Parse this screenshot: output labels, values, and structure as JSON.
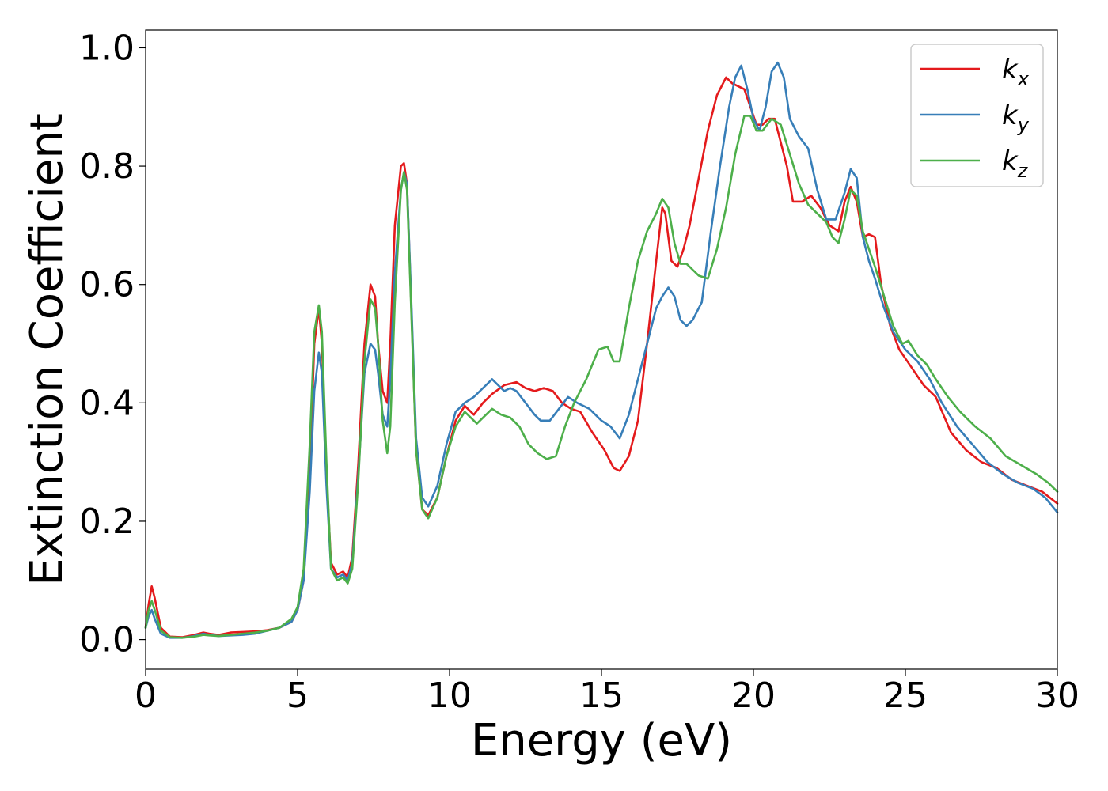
{
  "chart_data": {
    "type": "line",
    "xlabel": "Energy (eV)",
    "ylabel": "Extinction Coefficient",
    "xlim": [
      0,
      30
    ],
    "ylim": [
      -0.05,
      1.03
    ],
    "xticks": [
      0,
      5,
      10,
      15,
      20,
      25,
      30
    ],
    "yticks": [
      0.0,
      0.2,
      0.4,
      0.6,
      0.8,
      1.0
    ],
    "xtick_labels": [
      "0",
      "5",
      "10",
      "15",
      "20",
      "25",
      "30"
    ],
    "ytick_labels": [
      "0.0",
      "0.2",
      "0.4",
      "0.6",
      "0.8",
      "1.0"
    ],
    "grid": false,
    "legend_position": "top-right",
    "series": [
      {
        "name": "k",
        "subscript": "x",
        "color": "#e41a1c",
        "x": [
          0,
          0.1,
          0.2,
          0.3,
          0.5,
          0.8,
          1.2,
          1.6,
          1.9,
          2.1,
          2.4,
          2.8,
          3.2,
          3.6,
          4.0,
          4.4,
          4.8,
          5.0,
          5.2,
          5.4,
          5.55,
          5.7,
          5.8,
          5.95,
          6.1,
          6.3,
          6.5,
          6.65,
          6.8,
          7.0,
          7.2,
          7.4,
          7.55,
          7.65,
          7.8,
          7.95,
          8.05,
          8.2,
          8.4,
          8.5,
          8.6,
          8.75,
          8.9,
          9.1,
          9.3,
          9.6,
          9.9,
          10.2,
          10.5,
          10.8,
          11.1,
          11.4,
          11.8,
          12.2,
          12.5,
          12.8,
          13.1,
          13.4,
          13.7,
          14.0,
          14.3,
          14.7,
          15.1,
          15.4,
          15.6,
          15.9,
          16.2,
          16.5,
          16.8,
          17.0,
          17.1,
          17.3,
          17.5,
          17.7,
          17.9,
          18.2,
          18.5,
          18.8,
          19.1,
          19.3,
          19.5,
          19.7,
          19.9,
          20.1,
          20.3,
          20.5,
          20.7,
          20.9,
          21.1,
          21.3,
          21.6,
          21.9,
          22.2,
          22.5,
          22.8,
          23.0,
          23.2,
          23.4,
          23.6,
          23.8,
          24.0,
          24.2,
          24.5,
          24.8,
          25.2,
          25.6,
          26.0,
          26.5,
          27.0,
          27.5,
          28.0,
          28.5,
          29.0,
          29.5,
          30.0
        ],
        "y": [
          0.02,
          0.06,
          0.09,
          0.07,
          0.02,
          0.005,
          0.004,
          0.008,
          0.012,
          0.01,
          0.008,
          0.012,
          0.013,
          0.014,
          0.016,
          0.02,
          0.03,
          0.05,
          0.1,
          0.28,
          0.5,
          0.56,
          0.5,
          0.28,
          0.13,
          0.11,
          0.115,
          0.105,
          0.14,
          0.3,
          0.5,
          0.6,
          0.58,
          0.5,
          0.42,
          0.4,
          0.5,
          0.7,
          0.8,
          0.805,
          0.77,
          0.55,
          0.32,
          0.22,
          0.21,
          0.24,
          0.31,
          0.37,
          0.395,
          0.38,
          0.4,
          0.415,
          0.43,
          0.435,
          0.425,
          0.42,
          0.425,
          0.42,
          0.4,
          0.39,
          0.385,
          0.35,
          0.32,
          0.29,
          0.285,
          0.31,
          0.37,
          0.5,
          0.64,
          0.73,
          0.72,
          0.64,
          0.63,
          0.66,
          0.7,
          0.78,
          0.86,
          0.92,
          0.95,
          0.94,
          0.935,
          0.93,
          0.9,
          0.87,
          0.87,
          0.88,
          0.88,
          0.84,
          0.8,
          0.74,
          0.74,
          0.75,
          0.73,
          0.7,
          0.69,
          0.74,
          0.765,
          0.74,
          0.68,
          0.685,
          0.68,
          0.6,
          0.53,
          0.49,
          0.46,
          0.43,
          0.41,
          0.35,
          0.32,
          0.3,
          0.29,
          0.27,
          0.26,
          0.25,
          0.23
        ]
      },
      {
        "name": "k",
        "subscript": "y",
        "color": "#377eb8",
        "x": [
          0,
          0.1,
          0.2,
          0.3,
          0.5,
          0.8,
          1.2,
          1.6,
          1.9,
          2.1,
          2.4,
          2.8,
          3.2,
          3.6,
          4.0,
          4.4,
          4.8,
          5.0,
          5.2,
          5.4,
          5.55,
          5.7,
          5.8,
          5.95,
          6.1,
          6.3,
          6.5,
          6.65,
          6.8,
          7.0,
          7.2,
          7.4,
          7.55,
          7.65,
          7.8,
          7.95,
          8.05,
          8.2,
          8.4,
          8.5,
          8.6,
          8.75,
          8.9,
          9.1,
          9.3,
          9.6,
          9.9,
          10.2,
          10.5,
          10.8,
          11.1,
          11.4,
          11.6,
          11.8,
          12.0,
          12.2,
          12.5,
          12.8,
          13.0,
          13.3,
          13.6,
          13.9,
          14.2,
          14.6,
          15.0,
          15.3,
          15.6,
          15.9,
          16.2,
          16.5,
          16.8,
          17.0,
          17.2,
          17.4,
          17.6,
          17.8,
          18.0,
          18.3,
          18.6,
          18.9,
          19.2,
          19.4,
          19.6,
          19.8,
          20.0,
          20.2,
          20.4,
          20.6,
          20.8,
          21.0,
          21.2,
          21.5,
          21.8,
          22.1,
          22.4,
          22.7,
          23.0,
          23.2,
          23.4,
          23.6,
          23.8,
          24.0,
          24.3,
          24.6,
          25.0,
          25.4,
          25.8,
          26.2,
          26.7,
          27.2,
          27.7,
          28.2,
          28.7,
          29.2,
          29.6,
          30.0
        ],
        "y": [
          0.02,
          0.04,
          0.05,
          0.035,
          0.01,
          0.003,
          0.003,
          0.006,
          0.01,
          0.008,
          0.006,
          0.007,
          0.008,
          0.01,
          0.015,
          0.02,
          0.03,
          0.05,
          0.1,
          0.25,
          0.42,
          0.485,
          0.45,
          0.26,
          0.12,
          0.105,
          0.11,
          0.1,
          0.13,
          0.28,
          0.45,
          0.5,
          0.49,
          0.45,
          0.38,
          0.36,
          0.44,
          0.62,
          0.76,
          0.79,
          0.77,
          0.56,
          0.34,
          0.24,
          0.225,
          0.26,
          0.33,
          0.385,
          0.4,
          0.41,
          0.425,
          0.44,
          0.43,
          0.42,
          0.425,
          0.42,
          0.4,
          0.38,
          0.37,
          0.37,
          0.39,
          0.41,
          0.4,
          0.39,
          0.37,
          0.36,
          0.34,
          0.38,
          0.44,
          0.5,
          0.56,
          0.58,
          0.595,
          0.58,
          0.54,
          0.53,
          0.54,
          0.57,
          0.69,
          0.8,
          0.9,
          0.95,
          0.97,
          0.93,
          0.88,
          0.86,
          0.9,
          0.96,
          0.975,
          0.95,
          0.88,
          0.85,
          0.83,
          0.76,
          0.71,
          0.71,
          0.755,
          0.795,
          0.78,
          0.68,
          0.64,
          0.61,
          0.56,
          0.52,
          0.49,
          0.47,
          0.44,
          0.4,
          0.36,
          0.33,
          0.3,
          0.28,
          0.265,
          0.255,
          0.24,
          0.215
        ]
      },
      {
        "name": "k",
        "subscript": "z",
        "color": "#4daf4a",
        "x": [
          0,
          0.1,
          0.2,
          0.3,
          0.5,
          0.8,
          1.2,
          1.6,
          1.9,
          2.1,
          2.4,
          2.8,
          3.2,
          3.6,
          4.0,
          4.4,
          4.8,
          5.0,
          5.2,
          5.4,
          5.55,
          5.7,
          5.8,
          5.95,
          6.1,
          6.3,
          6.5,
          6.65,
          6.8,
          7.0,
          7.2,
          7.4,
          7.55,
          7.65,
          7.8,
          7.95,
          8.05,
          8.2,
          8.4,
          8.5,
          8.6,
          8.75,
          8.9,
          9.1,
          9.3,
          9.6,
          9.9,
          10.2,
          10.5,
          10.7,
          10.9,
          11.1,
          11.4,
          11.7,
          12.0,
          12.3,
          12.6,
          12.9,
          13.2,
          13.5,
          13.8,
          14.1,
          14.5,
          14.9,
          15.2,
          15.4,
          15.6,
          15.9,
          16.2,
          16.5,
          16.8,
          17.0,
          17.2,
          17.4,
          17.6,
          17.8,
          18.0,
          18.2,
          18.5,
          18.8,
          19.1,
          19.4,
          19.7,
          19.9,
          20.1,
          20.3,
          20.6,
          20.9,
          21.2,
          21.5,
          21.8,
          22.1,
          22.4,
          22.6,
          22.8,
          23.0,
          23.2,
          23.4,
          23.6,
          23.8,
          24.0,
          24.3,
          24.6,
          24.9,
          25.1,
          25.4,
          25.7,
          26.0,
          26.4,
          26.8,
          27.3,
          27.8,
          28.3,
          28.8,
          29.3,
          29.7,
          30.0
        ],
        "y": [
          0.02,
          0.05,
          0.065,
          0.05,
          0.015,
          0.004,
          0.003,
          0.005,
          0.008,
          0.007,
          0.006,
          0.008,
          0.01,
          0.012,
          0.015,
          0.02,
          0.035,
          0.055,
          0.12,
          0.33,
          0.52,
          0.565,
          0.52,
          0.3,
          0.12,
          0.1,
          0.105,
          0.095,
          0.12,
          0.27,
          0.47,
          0.575,
          0.56,
          0.5,
          0.37,
          0.315,
          0.36,
          0.57,
          0.76,
          0.79,
          0.76,
          0.54,
          0.32,
          0.22,
          0.205,
          0.24,
          0.31,
          0.36,
          0.385,
          0.375,
          0.365,
          0.375,
          0.39,
          0.38,
          0.375,
          0.36,
          0.33,
          0.315,
          0.305,
          0.31,
          0.36,
          0.4,
          0.44,
          0.49,
          0.495,
          0.47,
          0.47,
          0.56,
          0.64,
          0.69,
          0.72,
          0.745,
          0.73,
          0.67,
          0.635,
          0.635,
          0.625,
          0.615,
          0.61,
          0.66,
          0.73,
          0.82,
          0.885,
          0.885,
          0.86,
          0.86,
          0.88,
          0.87,
          0.82,
          0.77,
          0.735,
          0.72,
          0.705,
          0.68,
          0.67,
          0.71,
          0.76,
          0.75,
          0.69,
          0.66,
          0.63,
          0.58,
          0.53,
          0.5,
          0.505,
          0.48,
          0.465,
          0.44,
          0.41,
          0.385,
          0.36,
          0.34,
          0.31,
          0.295,
          0.28,
          0.265,
          0.25
        ]
      }
    ]
  }
}
